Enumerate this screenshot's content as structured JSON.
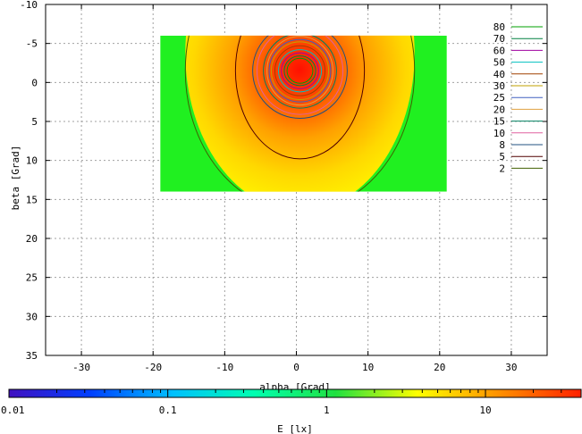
{
  "chart_data": {
    "type": "heatmap",
    "xlabel": "alpha [Grad]",
    "ylabel": "beta [Grad]",
    "xlim": [
      -35,
      35
    ],
    "ylim": [
      35,
      -10
    ],
    "grid": true,
    "legend_position": "top-right",
    "x_ticks": [
      "-30",
      "-20",
      "-10",
      "0",
      "10",
      "20",
      "30"
    ],
    "y_ticks": [
      "-10",
      "-5",
      "0",
      "5",
      "10",
      "15",
      "20",
      "25",
      "30",
      "35"
    ],
    "data_region": {
      "alpha": [
        -19,
        21
      ],
      "beta": [
        -6,
        14
      ]
    },
    "peak": {
      "alpha": 0.5,
      "beta": -1.5
    },
    "contours": [
      {
        "level": "80",
        "color": "#00a000",
        "r": [
          1.8,
          1.6
        ]
      },
      {
        "level": "70",
        "color": "#008040",
        "r": [
          2.2,
          1.9
        ]
      },
      {
        "level": "60",
        "color": "#a000a0",
        "r": [
          2.6,
          2.3
        ]
      },
      {
        "level": "50",
        "color": "#00c0c0",
        "r": [
          3.0,
          2.7
        ]
      },
      {
        "level": "40",
        "color": "#a04000",
        "r": [
          3.5,
          3.2
        ]
      },
      {
        "level": "30",
        "color": "#c0a000",
        "r": [
          4.0,
          3.7
        ]
      },
      {
        "level": "25",
        "color": "#4060c0",
        "r": [
          4.3,
          4.0
        ]
      },
      {
        "level": "20",
        "color": "#e0a040",
        "r": [
          4.6,
          4.4
        ]
      },
      {
        "level": "15",
        "color": "#008060",
        "r": [
          5.1,
          4.8
        ]
      },
      {
        "level": "10",
        "color": "#e060a0",
        "r": [
          6.0,
          5.6
        ]
      },
      {
        "level": "8",
        "color": "#205080",
        "r": [
          6.6,
          6.1
        ]
      },
      {
        "level": "5",
        "color": "#500000",
        "r": [
          9.0,
          11.3
        ]
      },
      {
        "level": "2",
        "color": "#406000",
        "r": [
          16.0,
          18.0
        ]
      }
    ],
    "colorbar": {
      "label": "E [lx]",
      "scale": "log",
      "range": [
        0.01,
        40
      ],
      "ticks": [
        "0.01",
        "0.1",
        "1",
        "10"
      ],
      "colors": [
        "#4010c0",
        "#0040ff",
        "#00c0ff",
        "#00ffb0",
        "#20e040",
        "#ffff00",
        "#ff9000",
        "#ff2000"
      ]
    }
  }
}
